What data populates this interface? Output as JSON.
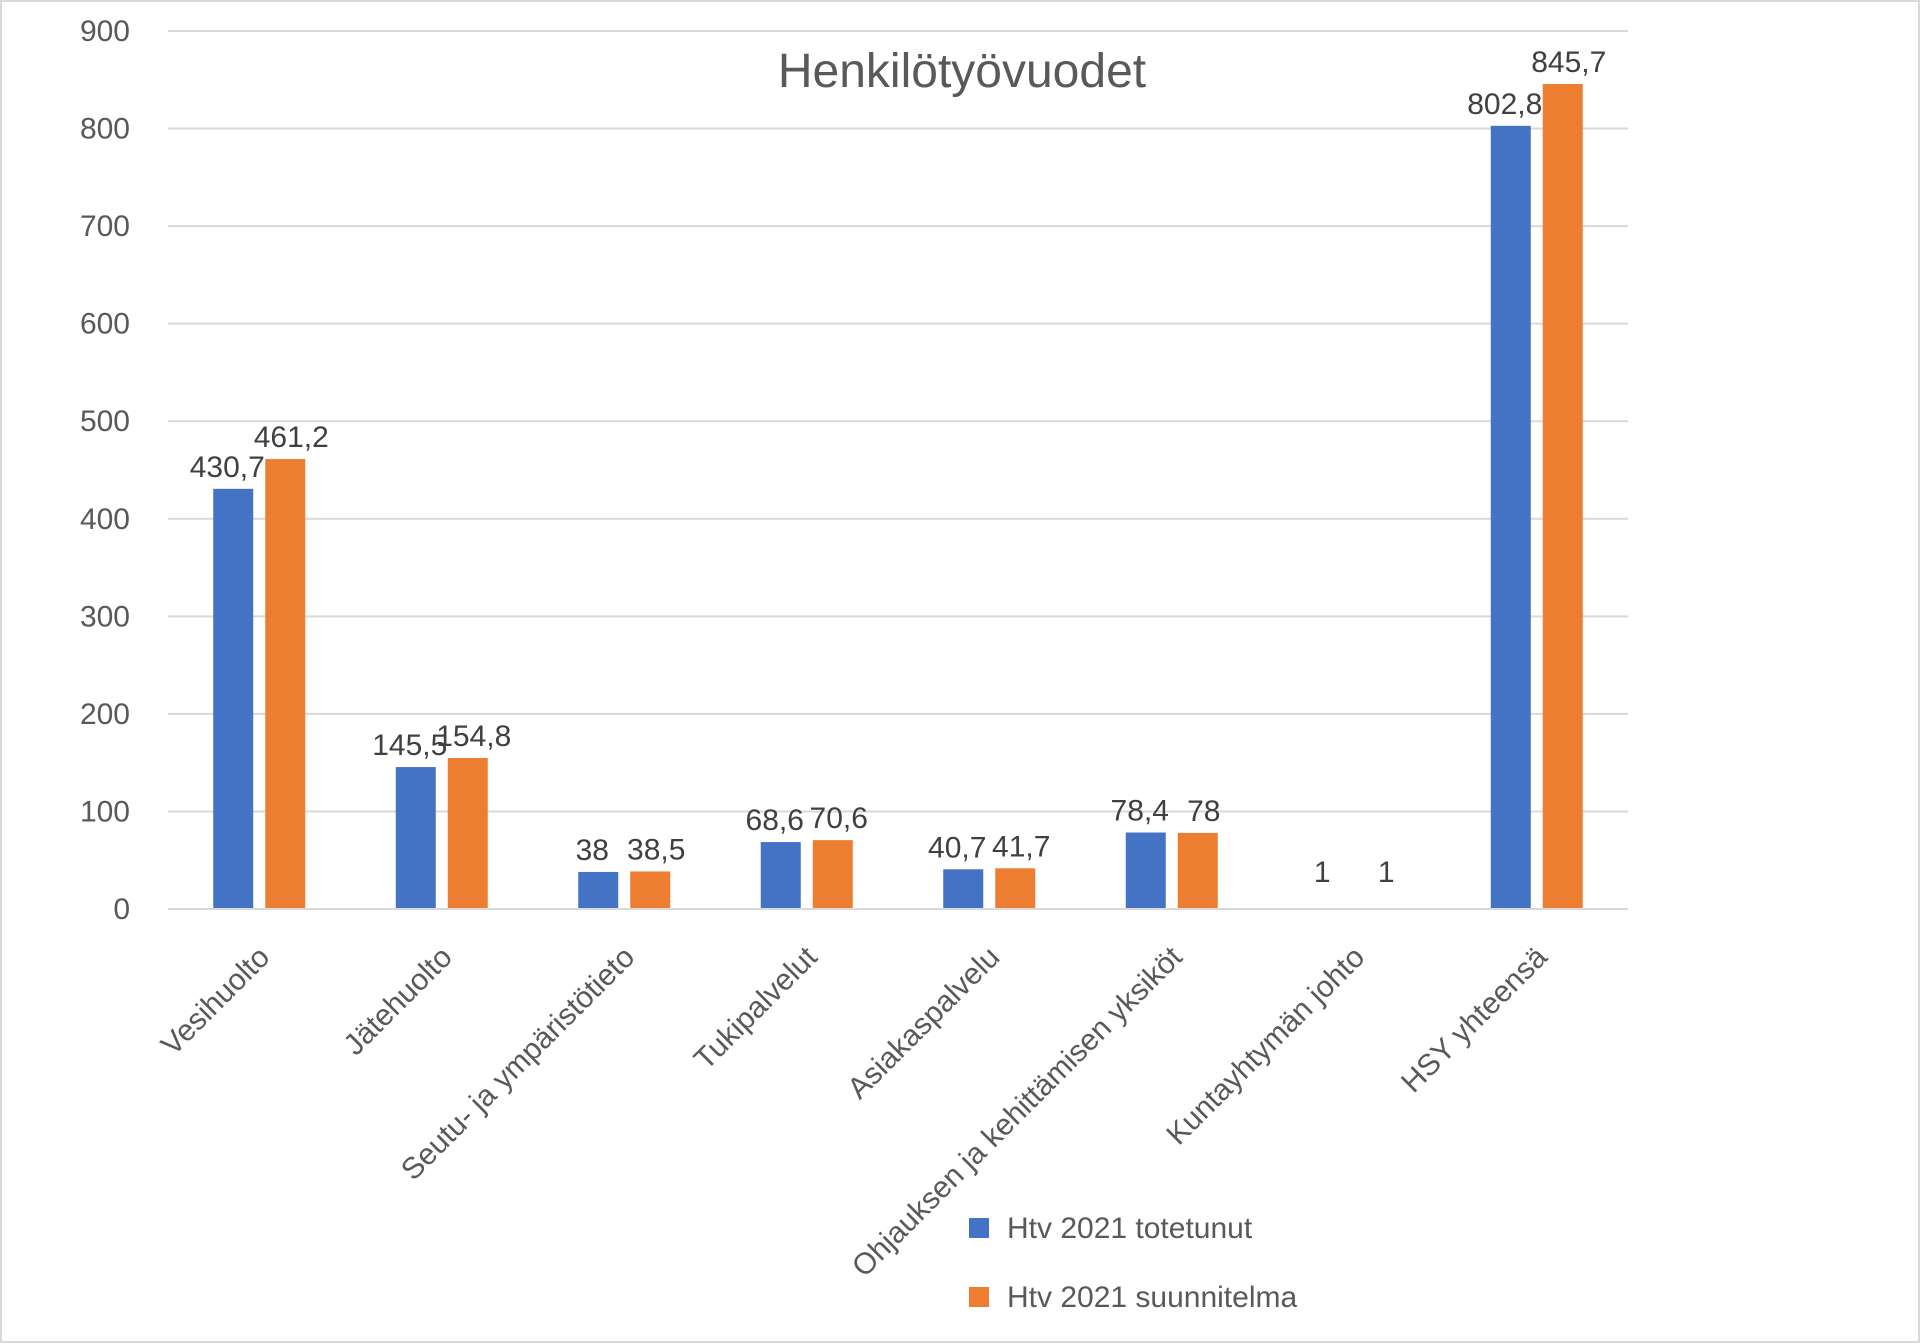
{
  "chart_data": {
    "type": "bar",
    "title": "Henkilötyövuodet",
    "xlabel": "",
    "ylabel": "",
    "ylim": [
      0,
      900
    ],
    "yticks": [
      0,
      100,
      200,
      300,
      400,
      500,
      600,
      700,
      800,
      900
    ],
    "grid": true,
    "legend_position": "bottom",
    "categories": [
      "Vesihuolto",
      "Jätehuolto",
      "Seutu- ja ympäristötieto",
      "Tukipalvelut",
      "Asiakaspalvelu",
      "Ohjauksen ja kehittämisen yksiköt",
      "Kuntayhtymän johto",
      "HSY yhteensä"
    ],
    "series": [
      {
        "name": "Htv 2021 totetunut",
        "color": "#4472c4",
        "values": [
          430.7,
          145.5,
          38,
          68.6,
          40.7,
          78.4,
          1,
          802.8
        ],
        "labels": [
          "430,7",
          "145,5",
          "38",
          "68,6",
          "40,7",
          "78,4",
          "1",
          "802,8"
        ]
      },
      {
        "name": "Htv 2021 suunnitelma",
        "color": "#ed7d31",
        "values": [
          461.2,
          154.8,
          38.5,
          70.6,
          41.7,
          78,
          1,
          845.7
        ],
        "labels": [
          "461,2",
          "154,8",
          "38,5",
          "70,6",
          "41,7",
          "78",
          "1",
          "845,7"
        ]
      }
    ]
  }
}
